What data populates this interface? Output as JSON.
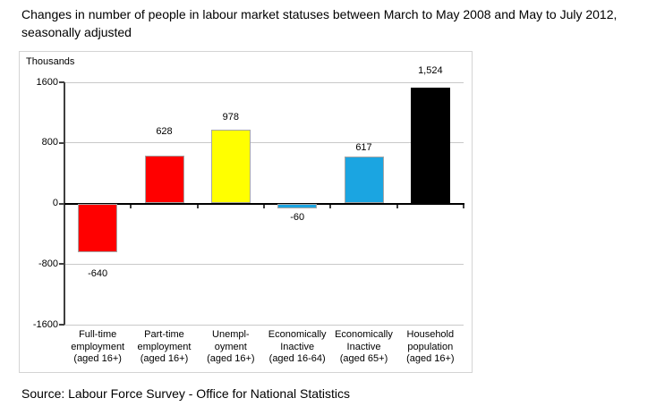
{
  "title": "Changes in number of people in labour market statuses between March to May 2008 and May to July 2012, seasonally adjusted",
  "source": "Source: Labour Force Survey - Office for National Statistics",
  "chart_data": {
    "type": "bar",
    "title": "Changes in number of people in labour market statuses between March to May 2008 and May to July 2012, seasonally adjusted",
    "unit_label": "Thousands",
    "xlabel": "",
    "ylabel": "Thousands",
    "ylim": [
      -1600,
      1600
    ],
    "grid": true,
    "legend": false,
    "y_ticks": [
      "1600",
      "800",
      "0",
      "-800",
      "-1600"
    ],
    "y_tick_values": [
      1600,
      800,
      0,
      -800,
      -1600
    ],
    "categories": [
      {
        "slug": "full-time-employment",
        "lines": [
          "Full-time",
          "employment",
          "(aged 16+)"
        ]
      },
      {
        "slug": "part-time-employment",
        "lines": [
          "Part-time",
          "employment",
          "(aged 16+)"
        ]
      },
      {
        "slug": "unemployment",
        "lines": [
          "Unempl-",
          "oyment",
          "(aged 16+)"
        ]
      },
      {
        "slug": "economically-inactive-16-64",
        "lines": [
          "Economically",
          "Inactive",
          "(aged 16-64)"
        ]
      },
      {
        "slug": "economically-inactive-65-plus",
        "lines": [
          "Economically",
          "Inactive",
          "(aged 65+)"
        ]
      },
      {
        "slug": "household-population",
        "lines": [
          "Household",
          "population",
          "(aged 16+)"
        ]
      }
    ],
    "values": [
      -640,
      628,
      978,
      -60,
      617,
      1524
    ],
    "value_labels": [
      "-640",
      "628",
      "978",
      "-60",
      "617",
      "1,524"
    ],
    "bar_colors": [
      "#ff0000",
      "#ff0000",
      "#ffff00",
      "#1ba5e1",
      "#1ba5e1",
      "#000000"
    ],
    "bar_border_color": "#a6a6a6"
  }
}
